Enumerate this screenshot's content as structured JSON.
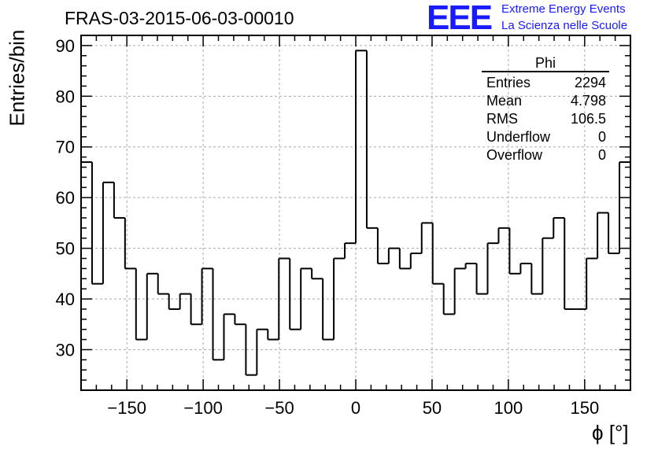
{
  "header": {
    "title": "FRAS-03-2015-06-03-00010",
    "logo_mark": "EEE",
    "logo_line1": "Extreme Energy Events",
    "logo_line2": "La Scienza nelle Scuole"
  },
  "colors": {
    "logo": "#1a1aff",
    "line": "#000000",
    "grid": "#aaaaaa"
  },
  "stats": {
    "title": "Phi",
    "rows": [
      {
        "label": "Entries",
        "value": "2294"
      },
      {
        "label": "Mean",
        "value": "4.798"
      },
      {
        "label": "RMS",
        "value": "106.5"
      },
      {
        "label": "Underflow",
        "value": "0"
      },
      {
        "label": "Overflow",
        "value": "0"
      }
    ]
  },
  "chart_data": {
    "type": "histogram",
    "title": "FRAS-03-2015-06-03-00010",
    "xlabel": "ϕ [°]",
    "ylabel": "Entries/bin",
    "xlim": [
      -180,
      180
    ],
    "ylim": [
      22,
      92
    ],
    "bin_width": 7.2,
    "grid": true,
    "xticks": [
      -150,
      -100,
      -50,
      0,
      50,
      100,
      150
    ],
    "xtick_labels": [
      "−150",
      "−100",
      "−50",
      "0",
      "50",
      "100",
      "150"
    ],
    "yticks": [
      30,
      40,
      50,
      60,
      70,
      80,
      90
    ],
    "ytick_labels": [
      "30",
      "40",
      "50",
      "60",
      "70",
      "80",
      "90"
    ],
    "values": [
      67,
      43,
      63,
      56,
      46,
      32,
      45,
      41,
      38,
      41,
      35,
      46,
      28,
      37,
      35,
      25,
      34,
      32,
      48,
      34,
      46,
      44,
      32,
      48,
      51,
      89,
      54,
      47,
      50,
      46,
      49,
      55,
      43,
      37,
      46,
      47,
      41,
      51,
      54,
      45,
      47,
      41,
      52,
      56,
      38,
      38,
      48,
      57,
      49,
      67
    ]
  }
}
